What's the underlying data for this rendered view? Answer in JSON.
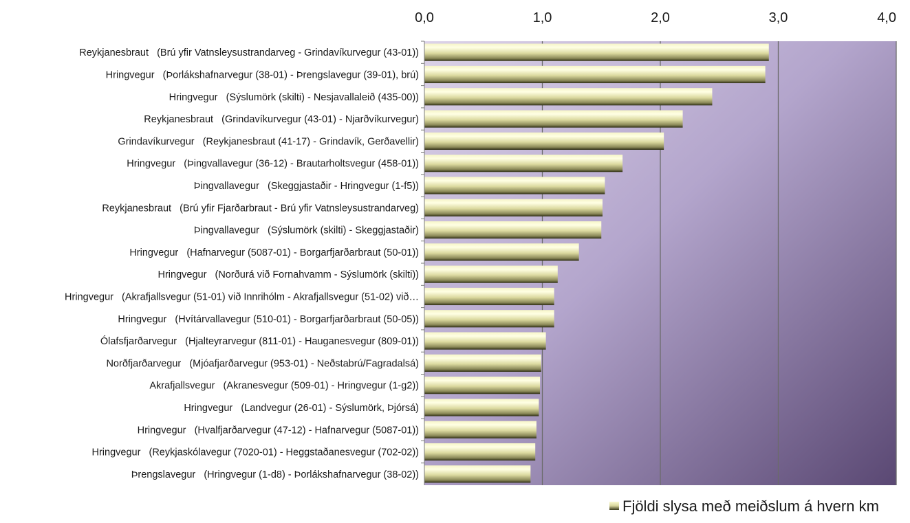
{
  "chart_data": {
    "type": "bar",
    "orientation": "horizontal",
    "xlim": [
      0,
      4
    ],
    "x_ticks": [
      "0,0",
      "1,0",
      "2,0",
      "3,0",
      "4,0"
    ],
    "x_tick_values": [
      0,
      1,
      2,
      3,
      4
    ],
    "x_axis_position": "top",
    "grid": true,
    "legend_position": "bottom-right",
    "colors": {
      "plot_bg_light": "#d6cce4",
      "plot_bg_mid": "#a99bc4",
      "plot_bg_dark": "#5c4a76",
      "bar_light": "#ffffd8",
      "bar_mid": "#e4e2a6",
      "bar_dark": "#3a3a1c",
      "gridline": "#6b6b6b"
    },
    "categories": [
      "Reykjanesbraut   (Brú yfir Vatnsleysustrandarveg - Grindavíkurvegur (43-01))",
      "Hringvegur   (Þorlákshafnarvegur (38-01) - Þrengslavegur (39-01), brú)",
      "Hringvegur   (Sýslumörk (skilti) - Nesjavallaleið (435-00))",
      "Reykjanesbraut   (Grindavíkurvegur (43-01) - Njarðvíkurvegur)",
      "Grindavíkurvegur   (Reykjanesbraut (41-17) - Grindavík, Gerðavellir)",
      "Hringvegur   (Þingvallavegur (36-12) - Brautarholtsvegur (458-01))",
      "Þingvallavegur   (Skeggjastaðir - Hringvegur (1-f5))",
      "Reykjanesbraut   (Brú yfir Fjarðarbraut - Brú yfir Vatnsleysustrandarveg)",
      "Þingvallavegur   (Sýslumörk (skilti) - Skeggjastaðir)",
      "Hringvegur   (Hafnarvegur (5087-01) - Borgarfjarðarbraut (50-01))",
      "Hringvegur   (Norðurá við Fornahvamm - Sýslumörk (skilti))",
      "Hringvegur   (Akrafjallsvegur (51-01) við Innrihólm - Akrafjallsvegur (51-02) við…",
      "Hringvegur   (Hvítárvallavegur (510-01) - Borgarfjarðarbraut (50-05))",
      "Ólafsfjarðarvegur   (Hjalteyrarvegur (811-01) - Hauganesvegur (809-01))",
      "Norðfjarðarvegur   (Mjóafjarðarvegur (953-01) - Neðstabrú/Fagradalsá)",
      "Akrafjallsvegur   (Akranesvegur (509-01) - Hringvegur (1-g2))",
      "Hringvegur   (Landvegur (26-01) - Sýslumörk, Þjórsá)",
      "Hringvegur   (Hvalfjarðarvegur (47-12) - Hafnarvegur (5087-01))",
      "Hringvegur   (Reykjaskólavegur (7020-01) - Heggstaðanesvegur (702-02))",
      "Þrengslavegur   (Hringvegur (1-d8) - Þorlákshafnarvegur (38-02))"
    ],
    "series": [
      {
        "name": "Fjöldi slysa með meiðslum á hvern km",
        "values": [
          2.92,
          2.89,
          2.44,
          2.19,
          2.03,
          1.68,
          1.53,
          1.51,
          1.5,
          1.31,
          1.13,
          1.1,
          1.1,
          1.03,
          0.99,
          0.98,
          0.97,
          0.95,
          0.94,
          0.9
        ]
      }
    ]
  }
}
